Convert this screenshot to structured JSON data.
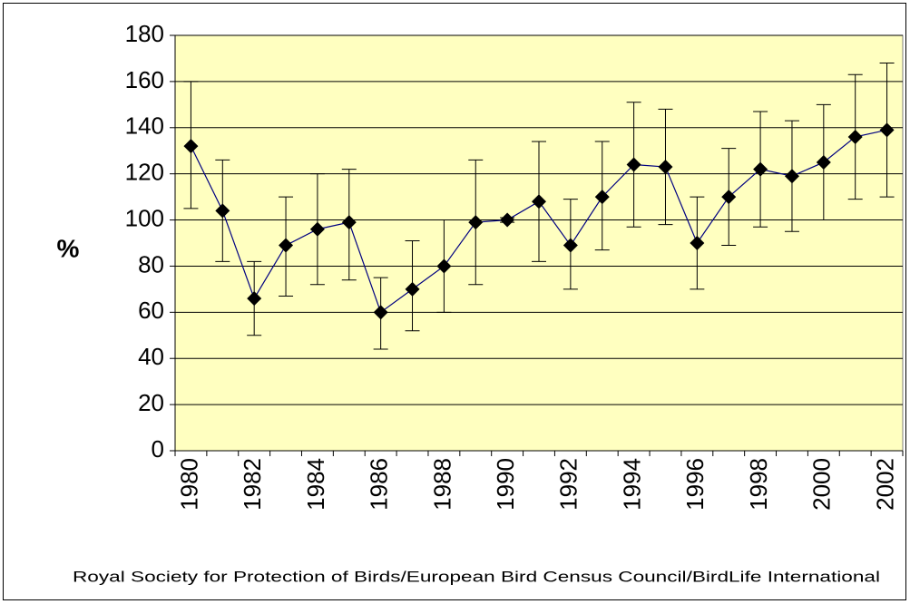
{
  "chart_data": {
    "type": "line",
    "y_label": "%",
    "source": "Royal Society for Protection of Birds/European Bird Census Council/BirdLife International",
    "categories": [
      "1980",
      null,
      "1982",
      null,
      "1984",
      null,
      "1986",
      null,
      "1988",
      null,
      "1990",
      null,
      "1992",
      null,
      "1994",
      null,
      "1996",
      null,
      "1998",
      null,
      "2000",
      null,
      "2002"
    ],
    "series": [
      {
        "color": "#000080",
        "values": [
          132,
          104,
          66,
          89,
          96,
          99,
          60,
          70,
          80,
          99,
          100,
          108,
          89,
          110,
          124,
          123,
          90,
          110,
          122,
          119,
          125,
          136,
          139
        ],
        "lower": [
          105,
          82,
          50,
          67,
          72,
          74,
          44,
          52,
          60,
          72,
          99,
          82,
          70,
          87,
          97,
          98,
          70,
          89,
          97,
          95,
          100,
          109,
          110
        ],
        "upper": [
          160,
          126,
          82,
          110,
          120,
          122,
          75,
          91,
          100,
          126,
          101,
          134,
          109,
          134,
          151,
          148,
          110,
          131,
          147,
          143,
          150,
          163,
          168
        ]
      }
    ],
    "marker_color": "#000000",
    "plot_background": "#ffffc0",
    "ylim": [
      0,
      180
    ],
    "yticks": [
      0,
      20,
      40,
      60,
      80,
      100,
      120,
      140,
      160,
      180
    ],
    "grid": true
  }
}
